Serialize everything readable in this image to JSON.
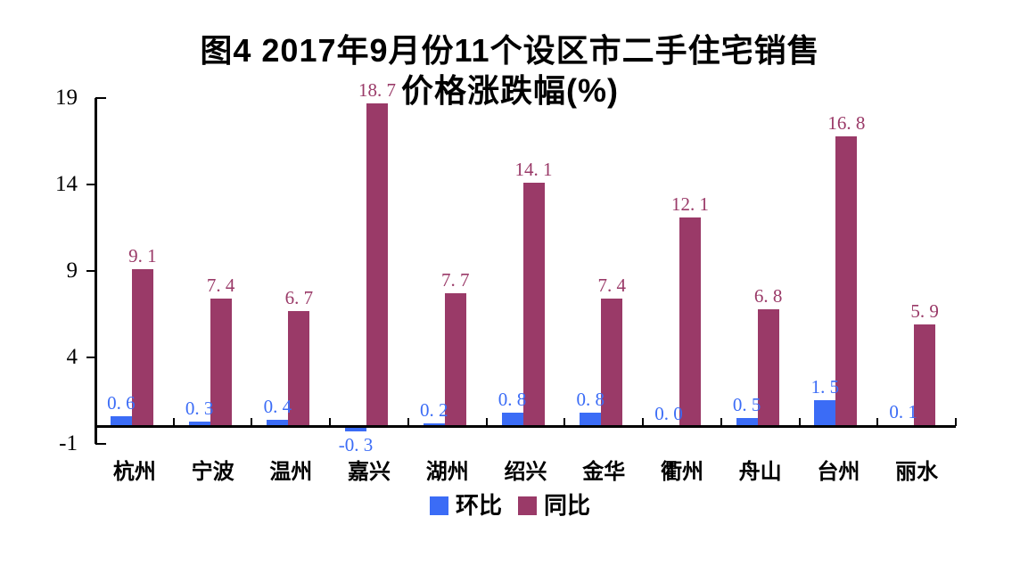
{
  "figure": {
    "title_line1": "图4 2017年9月份11个设区市二手住宅销售",
    "title_line2": "价格涨跌幅(%)"
  },
  "chart_data": {
    "type": "bar",
    "title": "图4 2017年9月份11个设区市二手住宅销售价格涨跌幅(%)",
    "categories": [
      "杭州",
      "宁波",
      "温州",
      "嘉兴",
      "湖州",
      "绍兴",
      "金华",
      "衢州",
      "舟山",
      "台州",
      "丽水"
    ],
    "series": [
      {
        "name": "环比",
        "color": "#3b6cf6",
        "values": [
          0.6,
          0.3,
          0.4,
          -0.3,
          0.2,
          0.8,
          0.8,
          0.0,
          0.5,
          1.5,
          0.1
        ],
        "labels": [
          "0.6",
          "0.3",
          "0.4",
          "-0.3",
          "0.2",
          "0.8",
          "0.8",
          "0.0",
          "0.5",
          "1.5",
          "0.1"
        ]
      },
      {
        "name": "同比",
        "color": "#9a3a68",
        "values": [
          9.1,
          7.4,
          6.7,
          18.7,
          7.7,
          14.1,
          7.4,
          12.1,
          6.8,
          16.8,
          5.9
        ],
        "labels": [
          "9.1",
          "7.4",
          "6.7",
          "18.7",
          "7.7",
          "14.1",
          "7.4",
          "12.1",
          "6.8",
          "16.8",
          "5.9"
        ]
      }
    ],
    "y_axis": {
      "min": -1,
      "max": 19,
      "ticks": [
        19,
        14,
        9,
        4,
        -1
      ],
      "tick_labels": [
        "19",
        "14",
        "9",
        "4",
        "-1"
      ]
    },
    "legend": {
      "position": "bottom",
      "entries": [
        "环比",
        "同比"
      ]
    },
    "grid": false,
    "data_labels_shown": true
  },
  "colors": {
    "mom_blue": "#3b6cf6",
    "yoy_maroon": "#9a3a68",
    "axis": "#000000",
    "background": "#ffffff"
  }
}
